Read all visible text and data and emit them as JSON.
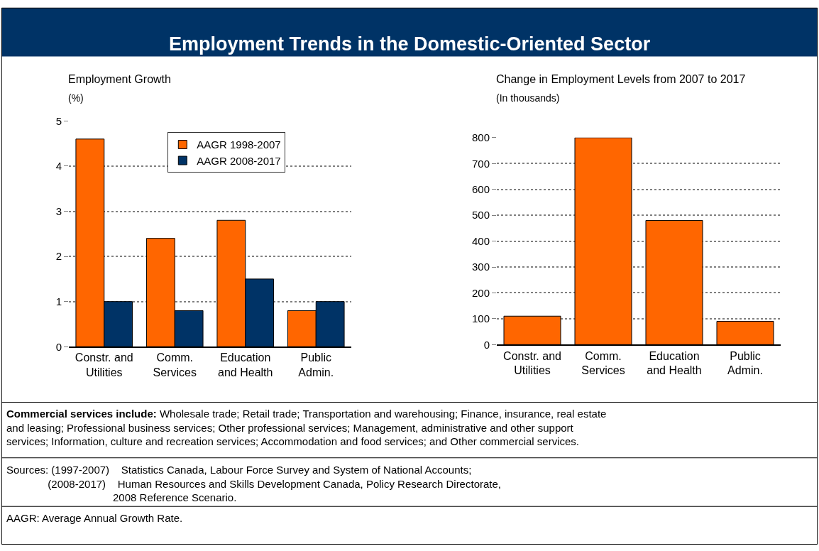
{
  "chart_data": [
    {
      "type": "bar",
      "title": "Employment Trends in the Domestic-Oriented Sector",
      "subtitle": "Employment Growth",
      "ylabel": "(%)",
      "categories": [
        "Constr. and\nUtilities",
        "Comm.\nServices",
        "Education\nand Health",
        "Public\nAdmin."
      ],
      "series": [
        {
          "name": "AAGR 1998-2007",
          "color": "#ff6600",
          "values": [
            4.6,
            2.4,
            2.8,
            0.8
          ]
        },
        {
          "name": "AAGR 2008-2017",
          "color": "#003366",
          "values": [
            1.0,
            0.8,
            1.5,
            1.0
          ]
        }
      ],
      "ylim": [
        0,
        5
      ],
      "yticks": [
        0,
        1,
        2,
        3,
        4,
        5
      ],
      "grid": "y",
      "legend": "top",
      "annotations": [
        "Commercial services include: Wholesale trade; Retail trade; Transportation and warehousing; Finance, insurance, real estate\nand leasing; Professional business services; Other professional services; Management, administrative and other support\nservices; Information, culture and recreation services; Accommodation and food services; and Other commercial services.",
        "Sources: (1997-2007)    Statistics Canada, Labour Force Survey and System of National Accounts;\n              (2008-2017)    Human Resources and Skills Development Canada, Policy Research Directorate,\n                                    2008 Reference Scenario.",
        "AAGR: Average Annual Growth Rate."
      ]
    },
    {
      "type": "bar",
      "subtitle": "Change in Employment Levels from 2007 to 2017",
      "ylabel": "(In thousands)",
      "categories": [
        "Constr. and\nUtilities",
        "Comm.\nServices",
        "Education\nand Health",
        "Public\nAdmin."
      ],
      "series": [
        {
          "color": "#ff6600",
          "values": [
            110,
            800,
            480,
            90
          ]
        }
      ],
      "ylim": [
        0,
        800
      ],
      "yticks": [
        0,
        100,
        200,
        300,
        400,
        500,
        600,
        700,
        800
      ],
      "grid": "y",
      "legend": false
    }
  ]
}
